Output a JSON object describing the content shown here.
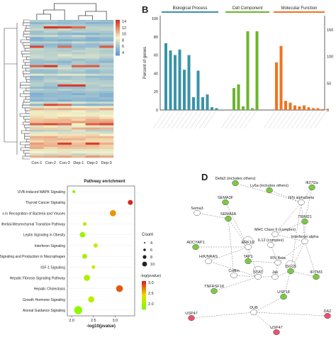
{
  "panels": {
    "B_label": "B",
    "D_label": "D"
  },
  "heatmap": {
    "samples": [
      "Con-1",
      "Con-2",
      "Con-3",
      "Dep-1",
      "Dep-2",
      "Dep-3"
    ],
    "colorbar_ticks": [
      "14",
      "12",
      "10",
      "8",
      "6",
      "4"
    ],
    "colors": {
      "low": "#5b9bd5",
      "mid": "#f7f3c6",
      "high": "#d7301f"
    }
  },
  "go_chart": {
    "categories": [
      {
        "name": "Biological Process",
        "color": "#3a93a8"
      },
      {
        "name": "Cell Component",
        "color": "#6bb52b"
      },
      {
        "name": "Molecular Function",
        "color": "#f07422"
      }
    ],
    "ylabel": "Percent of genes",
    "y_ticks_left": [
      "100",
      "80",
      "60",
      "40",
      "20",
      "0"
    ],
    "y_ticks_right": [
      "150",
      "100",
      "50",
      "0"
    ]
  },
  "chart_data": {
    "type": "scatter",
    "title": "Pathway enrichment",
    "xlabel": "-log10(pvalue)",
    "x_ticks": [
      "2.0",
      "2.5",
      "3.0"
    ],
    "xlim": [
      1.9,
      3.45
    ],
    "categories": [
      "UVB-Induced MAPK Signaling",
      "Thyroid Cancer Signaling",
      "s in Recognition of Bacteria and Viruses",
      "ithelial-Mesenchymal Transition Pathway",
      "Leptin Signaling in Obesity",
      "Interferon Signaling",
      "Signaling and Production in Macrophages",
      "IGF-1 Signaling",
      "Hepatic Fibrosis Signaling Pathway",
      "Hepatic Cholestasis",
      "Growth Hormone Signaling",
      "Axonal Guidance Signaling"
    ],
    "points": [
      {
        "x": 2.05,
        "count": 2,
        "pval": 2.05
      },
      {
        "x": 3.35,
        "count": 5,
        "pval": 3.3
      },
      {
        "x": 2.95,
        "count": 7,
        "pval": 2.9
      },
      {
        "x": 2.3,
        "count": 3,
        "pval": 2.3
      },
      {
        "x": 2.25,
        "count": 6,
        "pval": 2.2
      },
      {
        "x": 2.55,
        "count": 4,
        "pval": 2.5
      },
      {
        "x": 2.3,
        "count": 5,
        "pval": 2.25
      },
      {
        "x": 2.5,
        "count": 3,
        "pval": 2.45
      },
      {
        "x": 2.35,
        "count": 7,
        "pval": 2.3
      },
      {
        "x": 3.1,
        "count": 8,
        "pval": 3.1
      },
      {
        "x": 2.45,
        "count": 7,
        "pval": 2.4
      },
      {
        "x": 2.15,
        "count": 10,
        "pval": 2.1
      }
    ],
    "size_legend": {
      "title": "Count",
      "values": [
        "4",
        "6",
        "8",
        "10"
      ]
    },
    "color_legend": {
      "title": "-log(pvalue)",
      "ticks": [
        "3.0",
        "2.5",
        "2.0"
      ]
    }
  },
  "network": {
    "nodes": [
      {
        "label": "Defa3 (includes others)",
        "color": "#7ac943"
      },
      {
        "label": "Ly6a (includes others)",
        "color": "#7ac943"
      },
      {
        "label": "Ifi27l2a",
        "color": "#7ac943"
      },
      {
        "label": "IFN alpha/beta",
        "color": "#ffffff"
      },
      {
        "label": "SEMA3F",
        "color": "#7ac943"
      },
      {
        "label": "Sema3",
        "color": "#ffffff"
      },
      {
        "label": "SEMA3A",
        "color": "#7ac943"
      },
      {
        "label": "TRIM21",
        "color": "#7ac943"
      },
      {
        "label": "MHC Class II (complex)",
        "color": "#ffffff"
      },
      {
        "label": "IL12 (complex)",
        "color": "#ffffff"
      },
      {
        "label": "ADCYAP1",
        "color": "#7ac943"
      },
      {
        "label": "ERK1/2",
        "color": "#ffffff"
      },
      {
        "label": "Interferon alpha",
        "color": "#ffffff"
      },
      {
        "label": "H/K/NRAS",
        "color": "#ffffff"
      },
      {
        "label": "TAP1",
        "color": "#7ac943"
      },
      {
        "label": "IFN Beta",
        "color": "#ffffff"
      },
      {
        "label": "Cofilin",
        "color": "#ffffff"
      },
      {
        "label": "STAT",
        "color": "#ffffff"
      },
      {
        "label": "Jak",
        "color": "#ffffff"
      },
      {
        "label": "ISG15",
        "color": "#7ac943"
      },
      {
        "label": "IFITM3",
        "color": "#7ac943"
      },
      {
        "label": "TNFRSF18",
        "color": "#7ac943"
      },
      {
        "label": "USP18",
        "color": "#7ac943"
      },
      {
        "label": "USP47",
        "color": "#e8526f"
      },
      {
        "label": "DUB",
        "color": "#ffffff"
      },
      {
        "label": "USP47",
        "color": "#e8526f"
      },
      {
        "label": "DAZ",
        "color": "#e8526f"
      }
    ]
  }
}
